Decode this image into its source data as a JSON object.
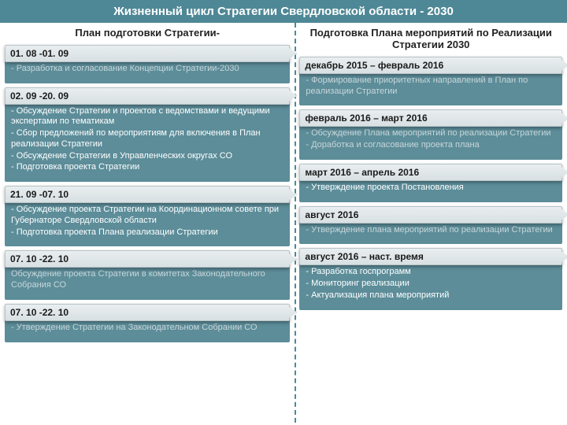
{
  "colors": {
    "header_bg": "#4e8896",
    "block_bg": "#5c8d99",
    "bar_bg1": "#e9eef0",
    "bar_bg2": "#d8e0e3",
    "divider": "#4a8a99"
  },
  "header": "Жизненный цикл Стратегии Свердловской области - 2030",
  "left": {
    "title": "План подготовки Стратегии-",
    "blocks": [
      {
        "date": "01. 08 -01. 09",
        "lines": [
          "- Разработка и согласование Концепции Стратегии-2030"
        ],
        "muted": true
      },
      {
        "date": "02. 09 -20. 09",
        "lines": [
          "- Обсуждение Стратегии и проектов с ведомствами и ведущими экспертами по тематикам",
          "- Сбор предложений по мероприятиям для включения в План реализации Стратегии",
          "- Обсуждение Стратегии в Управленческих округах СО",
          "- Подготовка проекта Стратегии"
        ],
        "muted": false
      },
      {
        "date": "21. 09 -07. 10",
        "lines": [
          "- Обсуждение проекта Стратегии на Координационном совете при Губернаторе Свердловской области",
          "- Подготовка проекта Плана реализации Стратегии"
        ],
        "muted": false
      },
      {
        "date": "07. 10 -22. 10",
        "lines": [
          "Обсуждение проекта Стратегии в комитетах Законодательного Собрания СО"
        ],
        "muted": true
      },
      {
        "date": "07. 10 -22. 10",
        "lines": [
          "- Утверждение Стратегии на Законодательном Собрании СО"
        ],
        "muted": true
      }
    ]
  },
  "right": {
    "title": "Подготовка Плана мероприятий по\nРеализации Стратегии 2030",
    "blocks": [
      {
        "date": "декабрь 2015 – февраль 2016",
        "lines": [
          "- Формирование приоритетных направлений в План по реализации Стратегии"
        ],
        "muted": true
      },
      {
        "date": "февраль 2016 – март 2016",
        "lines": [
          "-   Обсуждение Плана мероприятий по реализации Стратегии",
          "-   Доработка и согласование проекта плана"
        ],
        "muted": true
      },
      {
        "date": "март 2016 – апрель 2016",
        "lines": [
          "- Утверждение проекта Постановления"
        ],
        "muted": false
      },
      {
        "date": "август 2016",
        "lines": [
          "- Утверждение плана мероприятий по реализации Стратегии"
        ],
        "muted": true
      },
      {
        "date": "август 2016 – наст. время",
        "lines": [
          "-    Разработка госпрограмм",
          "-    Мониторинг реализации",
          "-    Актуализация плана мероприятий"
        ],
        "muted": false
      }
    ]
  }
}
